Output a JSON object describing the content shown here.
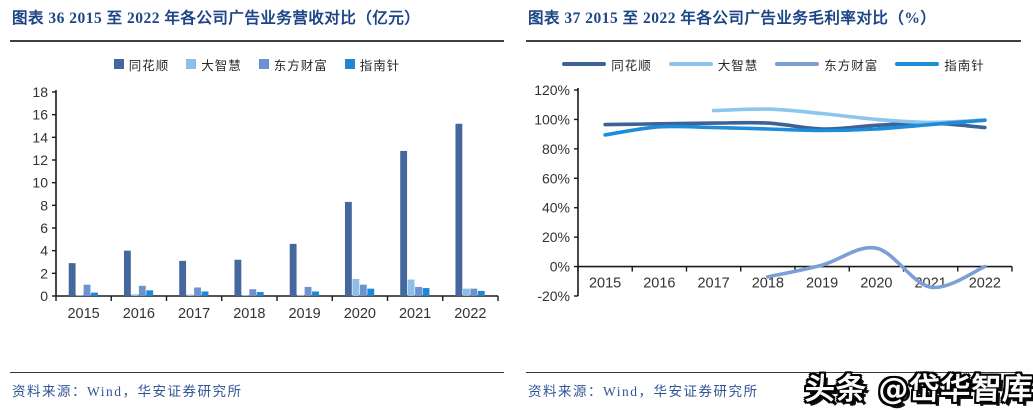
{
  "watermark": "头条 @岱华智库",
  "colors": {
    "title": "#1C4587",
    "source_text": "#2F5496",
    "axis": "#1a1a1a",
    "tick_text": "#333333"
  },
  "chart_data": [
    {
      "type": "bar",
      "title": "图表 36 2015 至 2022 年各公司广告业务营收对比（亿元）",
      "source": "资料来源：Wind，华安证券研究所",
      "categories": [
        "2015",
        "2016",
        "2017",
        "2018",
        "2019",
        "2020",
        "2021",
        "2022"
      ],
      "series": [
        {
          "name": "同花顺",
          "color": "#44689D",
          "values": [
            2.9,
            4.0,
            3.1,
            3.2,
            4.6,
            8.3,
            12.8,
            15.2
          ]
        },
        {
          "name": "大智慧",
          "color": "#8DBEE8",
          "values": [
            0.05,
            0.15,
            0.12,
            0.08,
            0.1,
            1.5,
            1.45,
            0.65
          ]
        },
        {
          "name": "东方财富",
          "color": "#6B93CF",
          "values": [
            1.0,
            0.9,
            0.75,
            0.6,
            0.8,
            1.0,
            0.8,
            0.65
          ]
        },
        {
          "name": "指南针",
          "color": "#1F87D3",
          "values": [
            0.3,
            0.5,
            0.4,
            0.35,
            0.4,
            0.65,
            0.7,
            0.45
          ]
        }
      ],
      "xlabel": "",
      "ylabel": "",
      "ylim": [
        0,
        18
      ],
      "ytick_step": 2,
      "yunit": "",
      "grid": false,
      "legend_position": "top"
    },
    {
      "type": "line",
      "title": "图表 37 2015 至 2022 年各公司广告业务毛利率对比（%）",
      "source": "资料来源：Wind，华安证券研究所",
      "categories": [
        "2015",
        "2016",
        "2017",
        "2018",
        "2019",
        "2020",
        "2021",
        "2022"
      ],
      "series": [
        {
          "name": "同花顺",
          "color": "#3C6396",
          "values": [
            96.5,
            97,
            97.5,
            97.5,
            93.5,
            96,
            97.5,
            94.5
          ]
        },
        {
          "name": "大智慧",
          "color": "#8CC5EE",
          "values": [
            null,
            null,
            106,
            107,
            104,
            100,
            98,
            99.5
          ]
        },
        {
          "name": "东方财富",
          "color": "#7CA0D6",
          "values": [
            null,
            null,
            null,
            -7,
            1,
            12.5,
            -14,
            0
          ]
        },
        {
          "name": "指南针",
          "color": "#1E8CD9",
          "values": [
            89.5,
            95,
            94.5,
            93.5,
            92.5,
            93.5,
            96.5,
            99.5
          ]
        }
      ],
      "xlabel": "",
      "ylabel": "",
      "ylim": [
        -20,
        120
      ],
      "ytick_step": 20,
      "yunit": "%",
      "grid": false,
      "legend_position": "top"
    }
  ]
}
